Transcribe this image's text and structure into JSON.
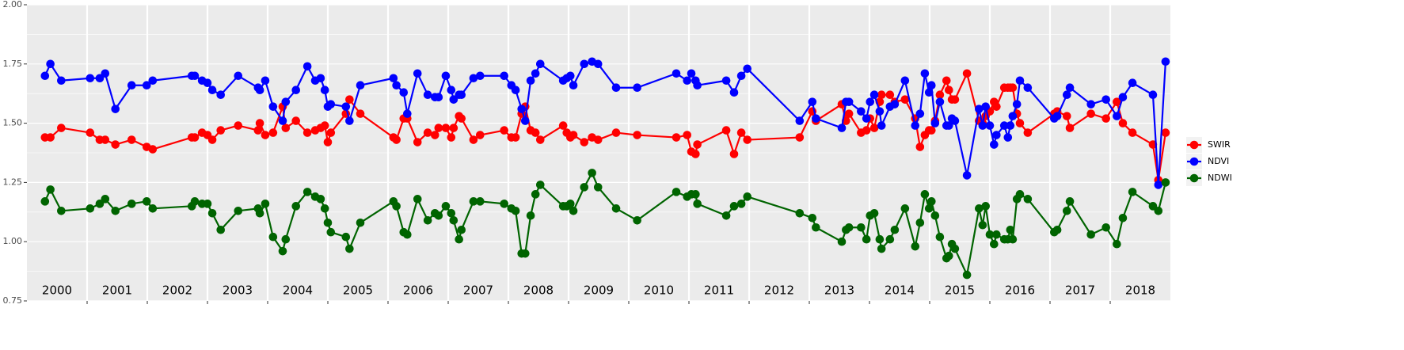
{
  "chart_data": {
    "type": "line",
    "year_labels": [
      "2000",
      "2001",
      "2002",
      "2003",
      "2004",
      "2005",
      "2006",
      "2007",
      "2008",
      "2009",
      "2010",
      "2011",
      "2012",
      "2013",
      "2014",
      "2015",
      "2016",
      "2017",
      "2018"
    ],
    "x": [
      2000.3,
      2000.39,
      2000.57,
      2001.05,
      2001.21,
      2001.3,
      2001.47,
      2001.74,
      2001.99,
      2002.09,
      2002.74,
      2002.79,
      2002.91,
      2003.0,
      2003.08,
      2003.22,
      2003.51,
      2003.84,
      2003.87,
      2003.96,
      2004.09,
      2004.25,
      2004.3,
      2004.47,
      2004.66,
      2004.79,
      2004.88,
      2004.95,
      2005.0,
      2005.05,
      2005.3,
      2005.36,
      2005.54,
      2006.09,
      2006.14,
      2006.26,
      2006.32,
      2006.49,
      2006.66,
      2006.78,
      2006.84,
      2006.96,
      2007.05,
      2007.09,
      2007.18,
      2007.22,
      2007.42,
      2007.53,
      2007.93,
      2008.05,
      2008.12,
      2008.22,
      2008.28,
      2008.37,
      2008.45,
      2008.53,
      2008.91,
      2008.97,
      2009.03,
      2009.08,
      2009.26,
      2009.39,
      2009.49,
      2009.79,
      2010.14,
      2010.79,
      2010.97,
      2011.04,
      2011.11,
      2011.14,
      2011.62,
      2011.75,
      2011.87,
      2011.97,
      2012.84,
      2013.05,
      2013.11,
      2013.54,
      2013.61,
      2013.66,
      2013.86,
      2013.95,
      2014.01,
      2014.08,
      2014.17,
      2014.2,
      2014.34,
      2014.42,
      2014.59,
      2014.76,
      2014.84,
      2014.92,
      2014.99,
      2015.03,
      2015.09,
      2015.17,
      2015.28,
      2015.32,
      2015.37,
      2015.42,
      2015.62,
      2015.82,
      2015.88,
      2015.93,
      2016.0,
      2016.07,
      2016.11,
      2016.24,
      2016.3,
      2016.34,
      2016.38,
      2016.45,
      2016.5,
      2016.63,
      2017.07,
      2017.12,
      2017.28,
      2017.33,
      2017.68,
      2017.93,
      2018.11,
      2018.21,
      2018.37,
      2018.71,
      2018.8,
      2018.92
    ],
    "series": [
      {
        "name": "SWIR",
        "color": "#ff0000",
        "values": [
          1.44,
          1.44,
          1.48,
          1.46,
          1.43,
          1.43,
          1.41,
          1.43,
          1.4,
          1.39,
          1.44,
          1.44,
          1.46,
          1.45,
          1.43,
          1.47,
          1.49,
          1.47,
          1.5,
          1.45,
          1.46,
          1.57,
          1.48,
          1.51,
          1.46,
          1.47,
          1.48,
          1.49,
          1.42,
          1.46,
          1.54,
          1.6,
          1.54,
          1.44,
          1.43,
          1.52,
          1.52,
          1.42,
          1.46,
          1.45,
          1.48,
          1.48,
          1.44,
          1.48,
          1.53,
          1.52,
          1.43,
          1.45,
          1.47,
          1.44,
          1.44,
          1.54,
          1.57,
          1.47,
          1.46,
          1.43,
          1.49,
          1.46,
          1.44,
          1.45,
          1.42,
          1.44,
          1.43,
          1.46,
          1.45,
          1.44,
          1.45,
          1.38,
          1.37,
          1.41,
          1.47,
          1.37,
          1.46,
          1.43,
          1.44,
          1.55,
          1.51,
          1.58,
          1.51,
          1.54,
          1.46,
          1.47,
          1.52,
          1.48,
          1.59,
          1.62,
          1.62,
          1.59,
          1.6,
          1.52,
          1.4,
          1.45,
          1.47,
          1.47,
          1.51,
          1.62,
          1.68,
          1.64,
          1.6,
          1.6,
          1.71,
          1.51,
          1.5,
          1.53,
          1.55,
          1.59,
          1.57,
          1.65,
          1.65,
          1.65,
          1.65,
          1.54,
          1.5,
          1.46,
          1.54,
          1.55,
          1.53,
          1.48,
          1.54,
          1.52,
          1.59,
          1.5,
          1.46,
          1.41,
          1.26,
          1.46
        ]
      },
      {
        "name": "NDVI",
        "color": "#0000ff",
        "values": [
          1.7,
          1.75,
          1.68,
          1.69,
          1.69,
          1.71,
          1.56,
          1.66,
          1.66,
          1.68,
          1.7,
          1.7,
          1.68,
          1.67,
          1.64,
          1.62,
          1.7,
          1.65,
          1.64,
          1.68,
          1.57,
          1.51,
          1.59,
          1.64,
          1.74,
          1.68,
          1.69,
          1.64,
          1.57,
          1.58,
          1.57,
          1.51,
          1.66,
          1.69,
          1.66,
          1.63,
          1.54,
          1.71,
          1.62,
          1.61,
          1.61,
          1.7,
          1.64,
          1.6,
          1.62,
          1.62,
          1.69,
          1.7,
          1.7,
          1.66,
          1.64,
          1.56,
          1.51,
          1.68,
          1.71,
          1.75,
          1.68,
          1.69,
          1.7,
          1.66,
          1.75,
          1.76,
          1.75,
          1.65,
          1.65,
          1.71,
          1.68,
          1.71,
          1.68,
          1.66,
          1.68,
          1.63,
          1.7,
          1.73,
          1.51,
          1.59,
          1.52,
          1.48,
          1.59,
          1.59,
          1.55,
          1.52,
          1.59,
          1.62,
          1.55,
          1.49,
          1.57,
          1.58,
          1.68,
          1.49,
          1.54,
          1.71,
          1.63,
          1.66,
          1.5,
          1.59,
          1.49,
          1.49,
          1.52,
          1.51,
          1.28,
          1.56,
          1.49,
          1.57,
          1.49,
          1.41,
          1.45,
          1.49,
          1.44,
          1.49,
          1.53,
          1.58,
          1.68,
          1.65,
          1.52,
          1.53,
          1.62,
          1.65,
          1.58,
          1.6,
          1.53,
          1.61,
          1.67,
          1.62,
          1.24,
          1.76
        ]
      },
      {
        "name": "NDWI",
        "color": "#006400",
        "values": [
          1.17,
          1.22,
          1.13,
          1.14,
          1.16,
          1.18,
          1.13,
          1.16,
          1.17,
          1.14,
          1.15,
          1.17,
          1.16,
          1.16,
          1.12,
          1.05,
          1.13,
          1.14,
          1.12,
          1.16,
          1.02,
          0.96,
          1.01,
          1.15,
          1.21,
          1.19,
          1.18,
          1.14,
          1.08,
          1.04,
          1.02,
          0.97,
          1.08,
          1.17,
          1.15,
          1.04,
          1.03,
          1.18,
          1.09,
          1.12,
          1.11,
          1.15,
          1.12,
          1.09,
          1.01,
          1.05,
          1.17,
          1.17,
          1.16,
          1.14,
          1.13,
          0.95,
          0.95,
          1.11,
          1.2,
          1.24,
          1.15,
          1.15,
          1.16,
          1.13,
          1.23,
          1.29,
          1.23,
          1.14,
          1.09,
          1.21,
          1.19,
          1.2,
          1.2,
          1.16,
          1.11,
          1.15,
          1.16,
          1.19,
          1.12,
          1.1,
          1.06,
          1.0,
          1.05,
          1.06,
          1.06,
          1.01,
          1.11,
          1.12,
          1.01,
          0.97,
          1.01,
          1.05,
          1.14,
          0.98,
          1.08,
          1.2,
          1.14,
          1.17,
          1.11,
          1.02,
          0.93,
          0.94,
          0.99,
          0.97,
          0.86,
          1.14,
          1.07,
          1.15,
          1.03,
          0.99,
          1.03,
          1.01,
          1.01,
          1.05,
          1.01,
          1.18,
          1.2,
          1.18,
          1.04,
          1.05,
          1.13,
          1.17,
          1.03,
          1.06,
          0.99,
          1.1,
          1.21,
          1.15,
          1.13,
          1.25
        ]
      }
    ],
    "xlim": [
      2000,
      2019
    ],
    "xticks": [
      2001,
      2002,
      2003,
      2004,
      2005,
      2006,
      2007,
      2008,
      2009,
      2010,
      2011,
      2012,
      2013,
      2014,
      2015,
      2016,
      2017,
      2018
    ],
    "ylim": [
      0.75,
      2.0
    ],
    "yticks": [
      {
        "value": 0.75,
        "label": "0.75"
      },
      {
        "value": 1.0,
        "label": "1.00"
      },
      {
        "value": 1.25,
        "label": "1.25"
      },
      {
        "value": 1.5,
        "label": "1.50"
      },
      {
        "value": 1.75,
        "label": "1.75"
      },
      {
        "value": 2.0,
        "label": "2.00"
      }
    ],
    "grid": true,
    "legend": "right"
  }
}
